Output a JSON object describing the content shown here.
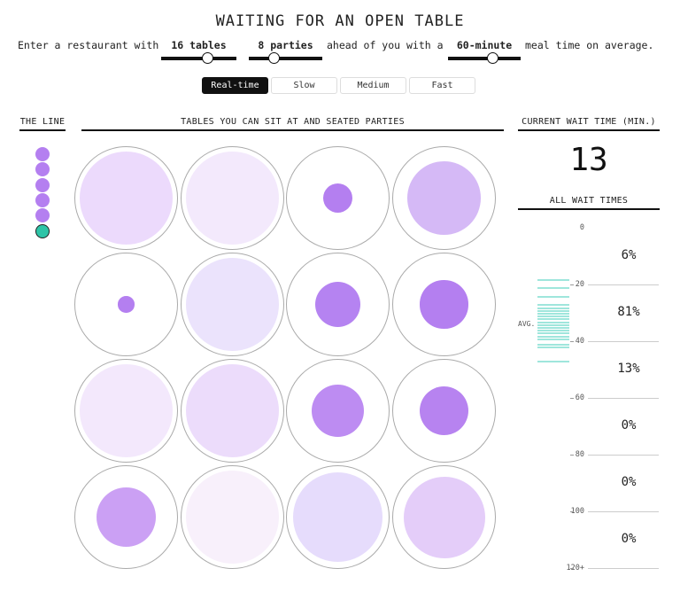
{
  "title": "WAITING FOR AN OPEN TABLE",
  "controls": {
    "prefix": "Enter a restaurant with",
    "tables_label": "16 tables",
    "tables_fraction": 0.62,
    "parties_label": "8 parties",
    "parties_fraction": 0.34,
    "mid_text": "ahead of you with a",
    "mealtime_label": "60-minute",
    "mealtime_fraction": 0.62,
    "suffix": "meal time on average."
  },
  "speed_buttons": [
    {
      "label": "Real-time",
      "active": true
    },
    {
      "label": "Slow",
      "active": false
    },
    {
      "label": "Medium",
      "active": false
    },
    {
      "label": "Fast",
      "active": false
    }
  ],
  "sections": {
    "line": "THE LINE",
    "tables": "TABLES YOU CAN SIT AT AND SEATED PARTIES",
    "current_wait": "CURRENT WAIT TIME (MIN.)",
    "all_waits": "ALL WAIT TIMES"
  },
  "queue": {
    "waiting_count": 5,
    "you_count": 1,
    "waiting_color": "#b47ff0",
    "you_color": "#2ec4a7"
  },
  "tables": [
    {
      "party_fraction": 0.92,
      "color": "#ecdafc"
    },
    {
      "party_fraction": 0.92,
      "color": "#f3e9fc"
    },
    {
      "party_fraction": 0.29,
      "color": "#b47ff0"
    },
    {
      "party_fraction": 0.72,
      "color": "#d5b9f6"
    },
    {
      "party_fraction": 0.16,
      "color": "#b47ff0"
    },
    {
      "party_fraction": 0.92,
      "color": "#ebe3fc"
    },
    {
      "party_fraction": 0.45,
      "color": "#b583f1"
    },
    {
      "party_fraction": 0.47,
      "color": "#b47ff0"
    },
    {
      "party_fraction": 0.92,
      "color": "#f3e8fc"
    },
    {
      "party_fraction": 0.92,
      "color": "#ecdcfb"
    },
    {
      "party_fraction": 0.52,
      "color": "#bd8cf2"
    },
    {
      "party_fraction": 0.48,
      "color": "#b783f0"
    },
    {
      "party_fraction": 0.59,
      "color": "#cba0f4"
    },
    {
      "party_fraction": 0.92,
      "color": "#f8f0fb"
    },
    {
      "party_fraction": 0.88,
      "color": "#e6dcfc"
    },
    {
      "party_fraction": 0.8,
      "color": "#e4cdf9"
    }
  ],
  "current_wait": "13",
  "wait_axis": {
    "ticks": [
      "0",
      "20",
      "40",
      "60",
      "80",
      "100",
      "120+"
    ],
    "tick_values": [
      0,
      20,
      40,
      60,
      80,
      100,
      120
    ],
    "avg_label": "AVG.",
    "avg_value": 34,
    "percentages": [
      "6%",
      "81%",
      "13%",
      "0%",
      "0%",
      "0%"
    ],
    "observed_waits": [
      18,
      21,
      24,
      27,
      28,
      29,
      30,
      31,
      32,
      33,
      34,
      35,
      36,
      37,
      38,
      39,
      41,
      42,
      47
    ],
    "bar_color": "#9fe6dc"
  }
}
